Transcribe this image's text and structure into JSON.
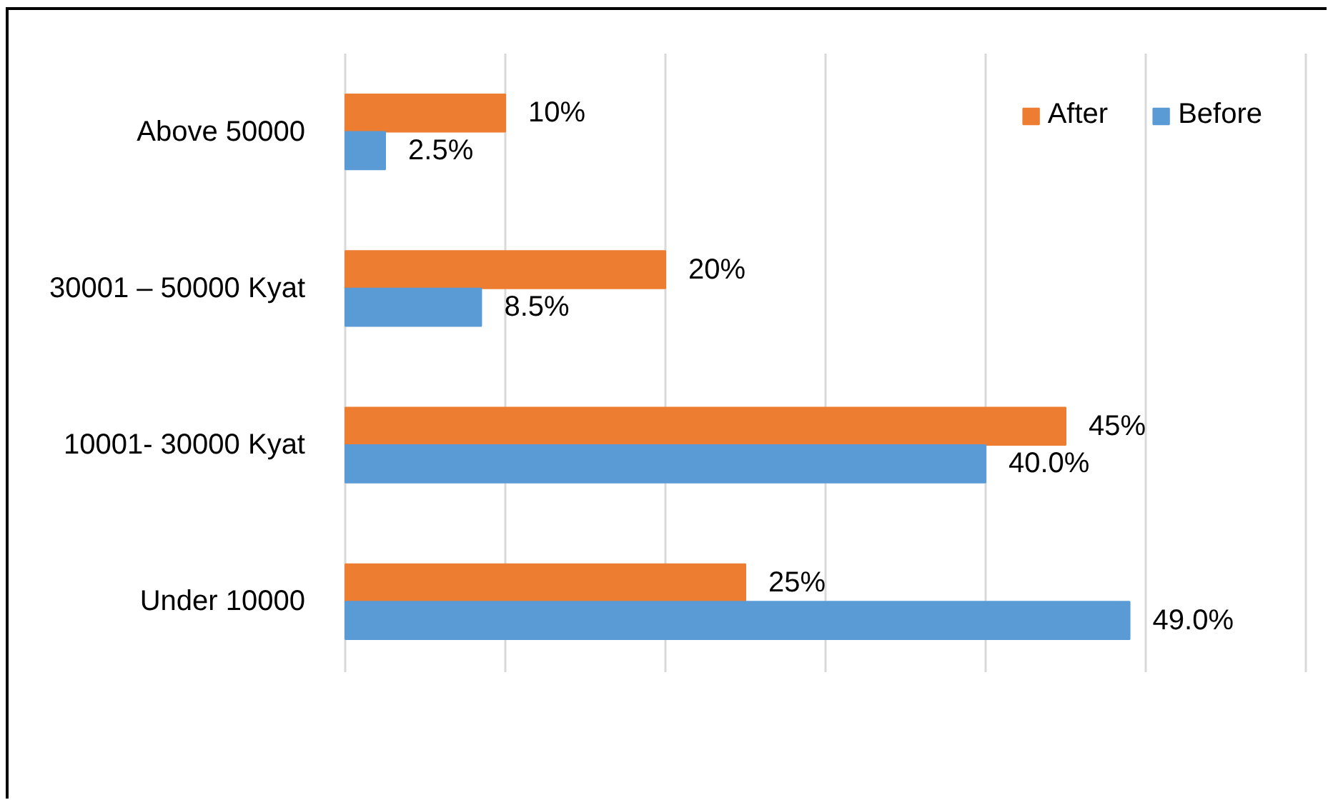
{
  "chart_data": {
    "type": "bar",
    "orientation": "horizontal",
    "categories": [
      "Above 50000",
      "30001 – 50000 Kyat",
      "10001- 30000 Kyat",
      "Under 10000"
    ],
    "series": [
      {
        "name": "After",
        "color": "#ed7d31",
        "values": [
          10,
          20,
          45,
          25
        ],
        "value_labels": [
          "10%",
          "20%",
          "45%",
          "25%"
        ]
      },
      {
        "name": "Before",
        "color": "#5b9bd5",
        "values": [
          2.5,
          8.5,
          40,
          49
        ],
        "value_labels": [
          "2.5%",
          "8.5%",
          "40.0%",
          "49.0%"
        ]
      }
    ],
    "xticks": [
      {
        "value": 0,
        "label": null
      },
      {
        "value": 10,
        "label": null
      },
      {
        "value": 20,
        "label": null
      },
      {
        "value": 30,
        "label": null
      },
      {
        "value": 40,
        "label": null
      },
      {
        "value": 50,
        "label": null
      },
      {
        "value": 60,
        "label": null
      }
    ],
    "grid": "x",
    "legend": "top right",
    "tick_labels": "y"
  }
}
